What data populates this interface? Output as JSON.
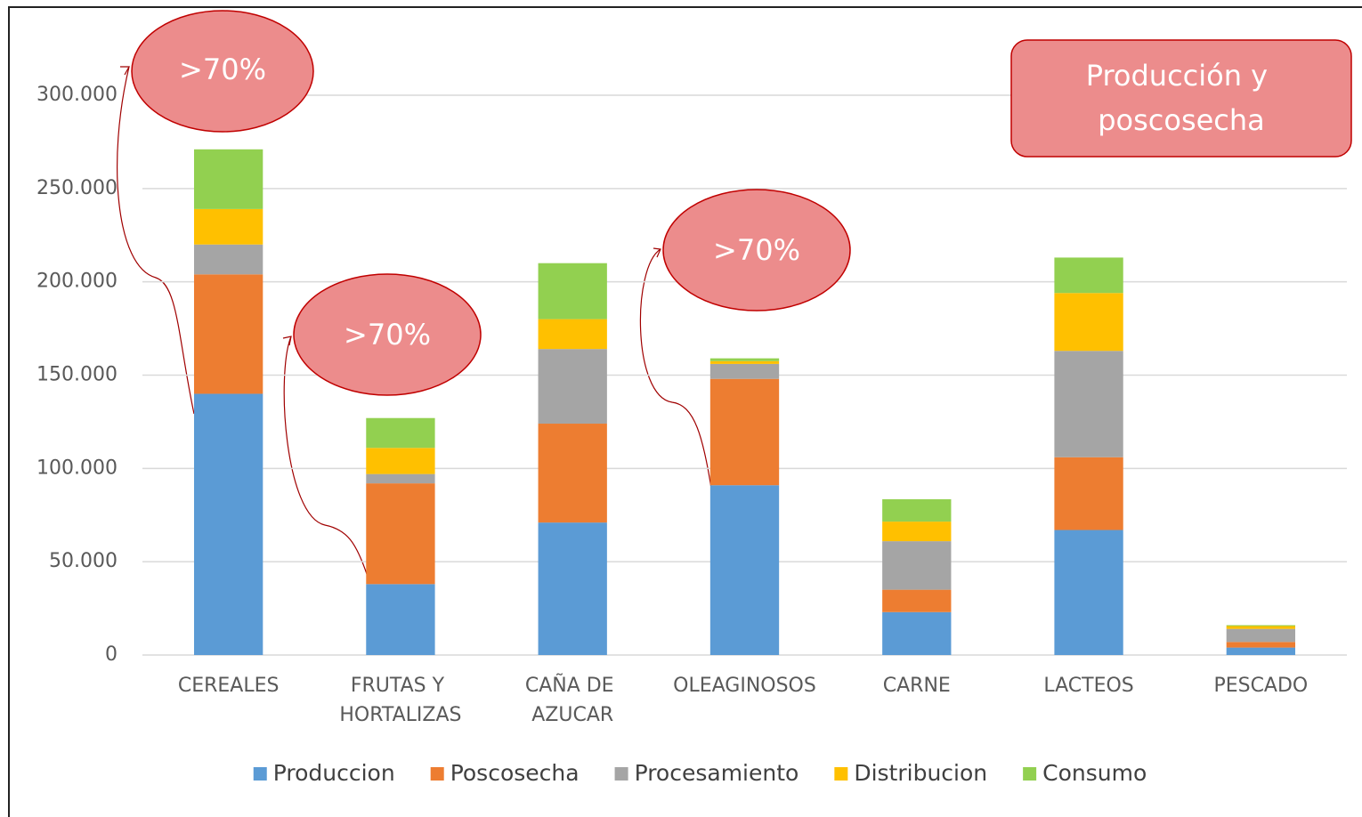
{
  "chart_data": {
    "type": "stacked_bar",
    "categories": [
      "CEREALES",
      "FRUTAS Y HORTALIZAS",
      "CAÑA DE AZUCAR",
      "OLEAGINOSOS",
      "CARNE",
      "LACTEOS",
      "PESCADO"
    ],
    "series": [
      {
        "name": "Produccion",
        "color": "#5b9bd5",
        "values": [
          140000,
          38000,
          71000,
          91000,
          23000,
          67000,
          4000
        ]
      },
      {
        "name": "Poscosecha",
        "color": "#ed7d31",
        "values": [
          64000,
          54000,
          53000,
          57000,
          12000,
          39000,
          3000
        ]
      },
      {
        "name": "Procesamiento",
        "color": "#a5a5a5",
        "values": [
          16000,
          5000,
          40000,
          8000,
          26000,
          57000,
          7000
        ]
      },
      {
        "name": "Distribucion",
        "color": "#ffc000",
        "values": [
          19000,
          14000,
          16000,
          1500,
          10500,
          31000,
          1500
        ]
      },
      {
        "name": "Consumo",
        "color": "#92d050",
        "values": [
          32000,
          16000,
          30000,
          1500,
          12000,
          19000,
          500
        ]
      }
    ],
    "ylim": [
      0,
      300000
    ],
    "yticks": [
      0,
      {
        "value": 50000,
        "label": "50.000"
      },
      {
        "value": 100000,
        "label": "100.000"
      },
      {
        "value": 150000,
        "label": "150.000"
      },
      {
        "value": 200000,
        "label": "200.000"
      },
      {
        "value": 250000,
        "label": "250.000"
      },
      {
        "value": 300000,
        "label": "300.000"
      }
    ],
    "grid": true,
    "legend": "bottom",
    "annotations": [
      ">70%",
      ">70%",
      ">70%",
      "Producción y poscosecha"
    ]
  }
}
